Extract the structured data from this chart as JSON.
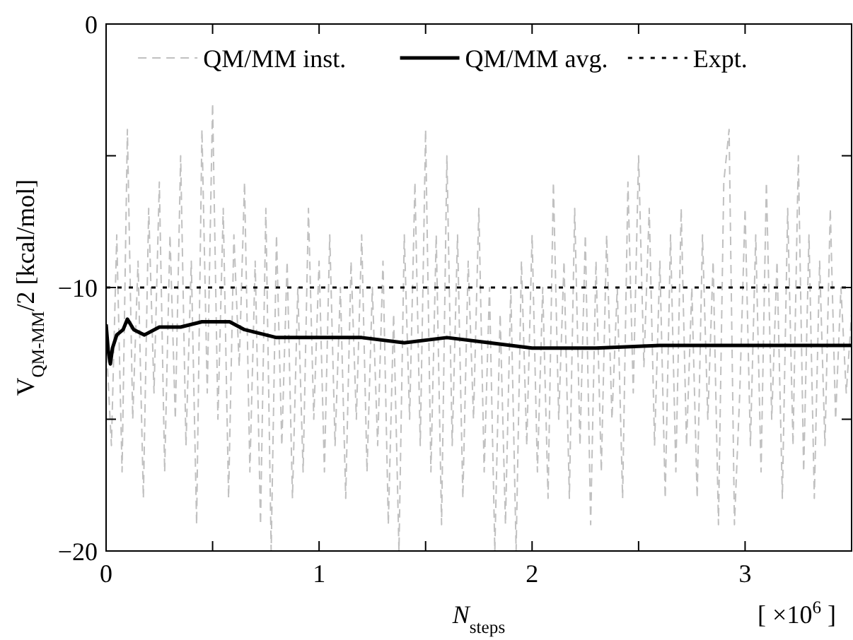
{
  "chart_data": {
    "type": "line",
    "xlabel": "N$_{steps}$",
    "ylabel": "V$_{QM-MM}$/2 [kcal/mol]",
    "annotations": [
      "[ ×10$^{6}$ ]"
    ],
    "xlim": [
      0,
      3.5
    ],
    "xticks": [
      0,
      {
        "value": 0.5,
        "label": null
      },
      1,
      {
        "value": 1.5,
        "label": null
      },
      2,
      {
        "value": 2.5,
        "label": null
      },
      3
    ],
    "ylim": [
      -20,
      0
    ],
    "yticks": [
      {
        "value": -20,
        "label": "−20"
      },
      {
        "value": -15,
        "label": null
      },
      {
        "value": -10,
        "label": "−10"
      },
      {
        "value": -5,
        "label": null
      },
      0
    ],
    "grid": false,
    "legend": "top",
    "series": [
      {
        "name": "QM/MM inst.",
        "color": "#c0c0c0",
        "line_style": "dashed",
        "x": [
          0,
          0.025,
          0.05,
          0.075,
          0.1,
          0.125,
          0.15,
          0.175,
          0.2,
          0.225,
          0.25,
          0.275,
          0.3,
          0.325,
          0.35,
          0.375,
          0.4,
          0.425,
          0.45,
          0.475,
          0.5,
          0.525,
          0.55,
          0.575,
          0.6,
          0.625,
          0.65,
          0.675,
          0.7,
          0.725,
          0.75,
          0.775,
          0.8,
          0.825,
          0.85,
          0.875,
          0.9,
          0.925,
          0.95,
          0.975,
          1,
          1.025,
          1.05,
          1.075,
          1.1,
          1.125,
          1.15,
          1.175,
          1.2,
          1.225,
          1.25,
          1.275,
          1.3,
          1.325,
          1.35,
          1.375,
          1.4,
          1.425,
          1.45,
          1.475,
          1.5,
          1.525,
          1.55,
          1.575,
          1.6,
          1.625,
          1.65,
          1.675,
          1.7,
          1.725,
          1.75,
          1.775,
          1.8,
          1.825,
          1.85,
          1.875,
          1.9,
          1.925,
          1.95,
          1.975,
          2,
          2.025,
          2.05,
          2.075,
          2.1,
          2.125,
          2.15,
          2.175,
          2.2,
          2.225,
          2.25,
          2.275,
          2.3,
          2.325,
          2.35,
          2.375,
          2.4,
          2.425,
          2.45,
          2.475,
          2.5,
          2.525,
          2.55,
          2.575,
          2.6,
          2.625,
          2.65,
          2.675,
          2.7,
          2.725,
          2.75,
          2.775,
          2.8,
          2.825,
          2.85,
          2.875,
          2.9,
          2.925,
          2.95,
          2.975,
          3,
          3.025,
          3.05,
          3.075,
          3.1,
          3.125,
          3.15,
          3.175,
          3.2,
          3.225,
          3.25,
          3.275,
          3.3,
          3.325,
          3.35,
          3.375,
          3.4,
          3.425,
          3.45,
          3.475,
          3.5
        ],
        "values": [
          -12,
          -16,
          -8,
          -17,
          -4,
          -15,
          -9,
          -18,
          -7,
          -14,
          -6,
          -17,
          -8,
          -15,
          -5,
          -16,
          -9,
          -19,
          -4,
          -14,
          -3,
          -15,
          -7,
          -18,
          -8,
          -13,
          -6,
          -17,
          -9,
          -19,
          -7,
          -20,
          -8,
          -16,
          -9,
          -18,
          -10,
          -17,
          -7,
          -15,
          -9,
          -17,
          -8,
          -16,
          -10,
          -18,
          -9,
          -15,
          -8,
          -17,
          -10,
          -16,
          -9,
          -19,
          -11,
          -20,
          -8,
          -15,
          -6,
          -16,
          -4,
          -17,
          -8,
          -19,
          -5,
          -16,
          -8,
          -18,
          -9,
          -15,
          -7,
          -17,
          -10,
          -20,
          -11,
          -19,
          -10,
          -20,
          -9,
          -16,
          -8,
          -17,
          -10,
          -18,
          -6,
          -15,
          -9,
          -18,
          -7,
          -16,
          -8,
          -19,
          -9,
          -17,
          -8,
          -15,
          -10,
          -18,
          -6,
          -14,
          -5,
          -13,
          -7,
          -16,
          -9,
          -18,
          -8,
          -17,
          -7,
          -16,
          -10,
          -18,
          -8,
          -15,
          -9,
          -19,
          -6,
          -4,
          -19,
          -14,
          -7,
          -16,
          -8,
          -17,
          -6,
          -15,
          -9,
          -18,
          -7,
          -16,
          -5,
          -17,
          -8,
          -18,
          -9,
          -16,
          -7,
          -15,
          -10,
          -14,
          -11
        ]
      },
      {
        "name": "QM/MM avg.",
        "color": "#000000",
        "line_style": "solid",
        "x": [
          0,
          0.01,
          0.02,
          0.03,
          0.05,
          0.08,
          0.1,
          0.13,
          0.18,
          0.25,
          0.35,
          0.45,
          0.5,
          0.58,
          0.65,
          0.8,
          1,
          1.2,
          1.4,
          1.6,
          1.8,
          2,
          2.3,
          2.6,
          3,
          3.5
        ],
        "values": [
          -11.4,
          -12.4,
          -12.9,
          -12.3,
          -11.8,
          -11.6,
          -11.2,
          -11.6,
          -11.8,
          -11.5,
          -11.5,
          -11.3,
          -11.3,
          -11.3,
          -11.6,
          -11.9,
          -11.9,
          -11.9,
          -12.1,
          -11.9,
          -12.1,
          -12.3,
          -12.3,
          -12.2,
          -12.2,
          -12.2
        ]
      },
      {
        "name": "Expt.",
        "color": "#000000",
        "line_style": "dotted",
        "x": [
          0,
          3.5
        ],
        "values": [
          -10,
          -10
        ]
      }
    ]
  }
}
